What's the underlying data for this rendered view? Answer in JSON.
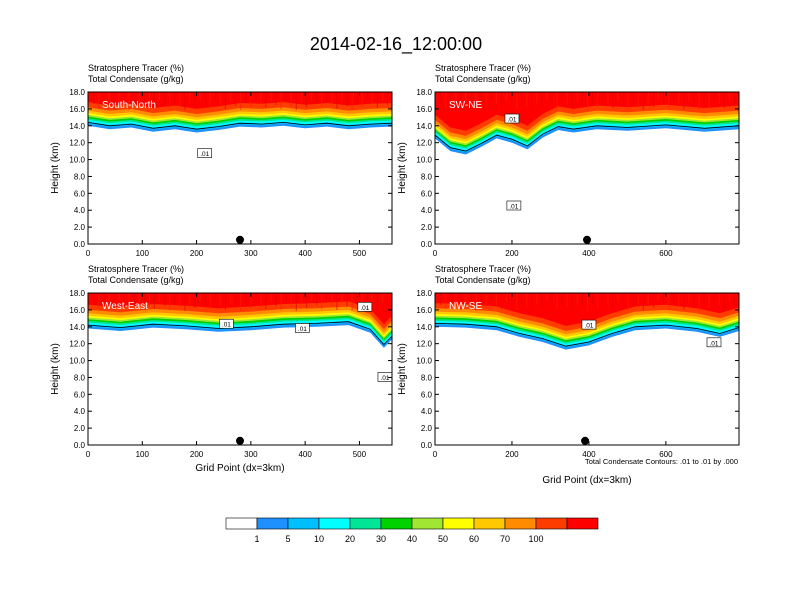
{
  "title": "2014-02-16_12:00:00",
  "footnote": "Total Condensate Contours: .01 to .01 by .000",
  "chart_data": [
    {
      "type": "heatmap",
      "panel_label": "South-North",
      "title_line1": "Stratosphere Tracer   (%)",
      "title_line2": "Total Condensate   (g/kg)",
      "ylabel": "Height (km)",
      "xlabel": "",
      "xlim": [
        0,
        560
      ],
      "ylim": [
        0,
        18
      ],
      "xticks": [
        0,
        100,
        200,
        300,
        400,
        500
      ],
      "yticks": [
        "0.0",
        "2.0",
        "4.0",
        "6.0",
        "8.0",
        "10.0",
        "12.0",
        "14.0",
        "16.0",
        "18.0"
      ],
      "tracer_base_km": [
        [
          0,
          14.0
        ],
        [
          40,
          13.6
        ],
        [
          80,
          13.8
        ],
        [
          120,
          13.3
        ],
        [
          160,
          13.6
        ],
        [
          200,
          13.2
        ],
        [
          240,
          13.5
        ],
        [
          280,
          13.9
        ],
        [
          320,
          13.8
        ],
        [
          360,
          14.0
        ],
        [
          400,
          13.7
        ],
        [
          440,
          13.9
        ],
        [
          480,
          13.6
        ],
        [
          520,
          13.8
        ],
        [
          560,
          13.9
        ]
      ],
      "marker_x": 280,
      "contour_labels": [
        {
          "text": ".01",
          "x": 215,
          "y": 10.7
        }
      ]
    },
    {
      "type": "heatmap",
      "panel_label": "SW-NE",
      "title_line1": "Stratosphere Tracer   (%)",
      "title_line2": "Total Condensate   (g/kg)",
      "ylabel": "Height (km)",
      "xlabel": "",
      "xlim": [
        0,
        790
      ],
      "ylim": [
        0,
        18
      ],
      "xticks": [
        0,
        200,
        400,
        600
      ],
      "yticks": [
        "0.0",
        "2.0",
        "4.0",
        "6.0",
        "8.0",
        "10.0",
        "12.0",
        "14.0",
        "16.0",
        "18.0"
      ],
      "tracer_base_km": [
        [
          0,
          12.5
        ],
        [
          40,
          11.0
        ],
        [
          80,
          10.6
        ],
        [
          120,
          11.5
        ],
        [
          160,
          12.5
        ],
        [
          200,
          12.0
        ],
        [
          240,
          11.2
        ],
        [
          280,
          12.6
        ],
        [
          320,
          13.5
        ],
        [
          360,
          13.2
        ],
        [
          420,
          13.6
        ],
        [
          500,
          13.4
        ],
        [
          600,
          13.7
        ],
        [
          700,
          13.3
        ],
        [
          790,
          13.6
        ]
      ],
      "marker_x": 395,
      "contour_labels": [
        {
          "text": ".01",
          "x": 200,
          "y": 14.8
        },
        {
          "text": ".01",
          "x": 205,
          "y": 4.5
        }
      ]
    },
    {
      "type": "heatmap",
      "panel_label": "West-East",
      "title_line1": "Stratosphere Tracer   (%)",
      "title_line2": "Total Condensate   (g/kg)",
      "ylabel": "Height (km)",
      "xlabel": "Grid Point (dx=3km)",
      "xlim": [
        0,
        560
      ],
      "ylim": [
        0,
        18
      ],
      "xticks": [
        0,
        100,
        200,
        300,
        400,
        500
      ],
      "yticks": [
        "0.0",
        "2.0",
        "4.0",
        "6.0",
        "8.0",
        "10.0",
        "12.0",
        "14.0",
        "16.0",
        "18.0"
      ],
      "tracer_base_km": [
        [
          0,
          13.8
        ],
        [
          60,
          13.5
        ],
        [
          120,
          13.9
        ],
        [
          180,
          13.7
        ],
        [
          240,
          13.4
        ],
        [
          300,
          13.6
        ],
        [
          360,
          13.9
        ],
        [
          420,
          14.0
        ],
        [
          480,
          14.2
        ],
        [
          520,
          13.3
        ],
        [
          545,
          11.5
        ],
        [
          560,
          12.5
        ]
      ],
      "marker_x": 280,
      "contour_labels": [
        {
          "text": ".01",
          "x": 510,
          "y": 16.3
        },
        {
          "text": ".01",
          "x": 255,
          "y": 14.3
        },
        {
          "text": ".01",
          "x": 395,
          "y": 13.8
        },
        {
          "text": ".01",
          "x": 547,
          "y": 8.0
        }
      ]
    },
    {
      "type": "heatmap",
      "panel_label": "NW-SE",
      "title_line1": "Stratosphere Tracer   (%)",
      "title_line2": "Total Condensate   (g/kg)",
      "ylabel": "Height (km)",
      "xlabel": "Grid Point (dx=3km)",
      "xlim": [
        0,
        790
      ],
      "ylim": [
        0,
        18
      ],
      "xticks": [
        0,
        200,
        400,
        600
      ],
      "yticks": [
        "0.0",
        "2.0",
        "4.0",
        "6.0",
        "8.0",
        "10.0",
        "12.0",
        "14.0",
        "16.0",
        "18.0"
      ],
      "tracer_base_km": [
        [
          0,
          14.0
        ],
        [
          80,
          13.9
        ],
        [
          160,
          13.6
        ],
        [
          220,
          12.8
        ],
        [
          280,
          12.2
        ],
        [
          340,
          11.3
        ],
        [
          400,
          11.8
        ],
        [
          460,
          12.8
        ],
        [
          520,
          13.6
        ],
        [
          600,
          13.8
        ],
        [
          680,
          13.4
        ],
        [
          740,
          12.8
        ],
        [
          790,
          13.5
        ]
      ],
      "marker_x": 390,
      "contour_labels": [
        {
          "text": ".01",
          "x": 400,
          "y": 14.2
        },
        {
          "text": ".01",
          "x": 725,
          "y": 12.1
        }
      ]
    }
  ],
  "colorbar": {
    "labels": [
      "1",
      "5",
      "10",
      "20",
      "30",
      "40",
      "50",
      "60",
      "70",
      "100"
    ],
    "colors": [
      "#ffffff",
      "#1e90ff",
      "#00bfff",
      "#00ffff",
      "#00e696",
      "#00d200",
      "#a0e632",
      "#ffff00",
      "#ffc800",
      "#ff8c00",
      "#ff3c00",
      "#ff0000"
    ]
  }
}
